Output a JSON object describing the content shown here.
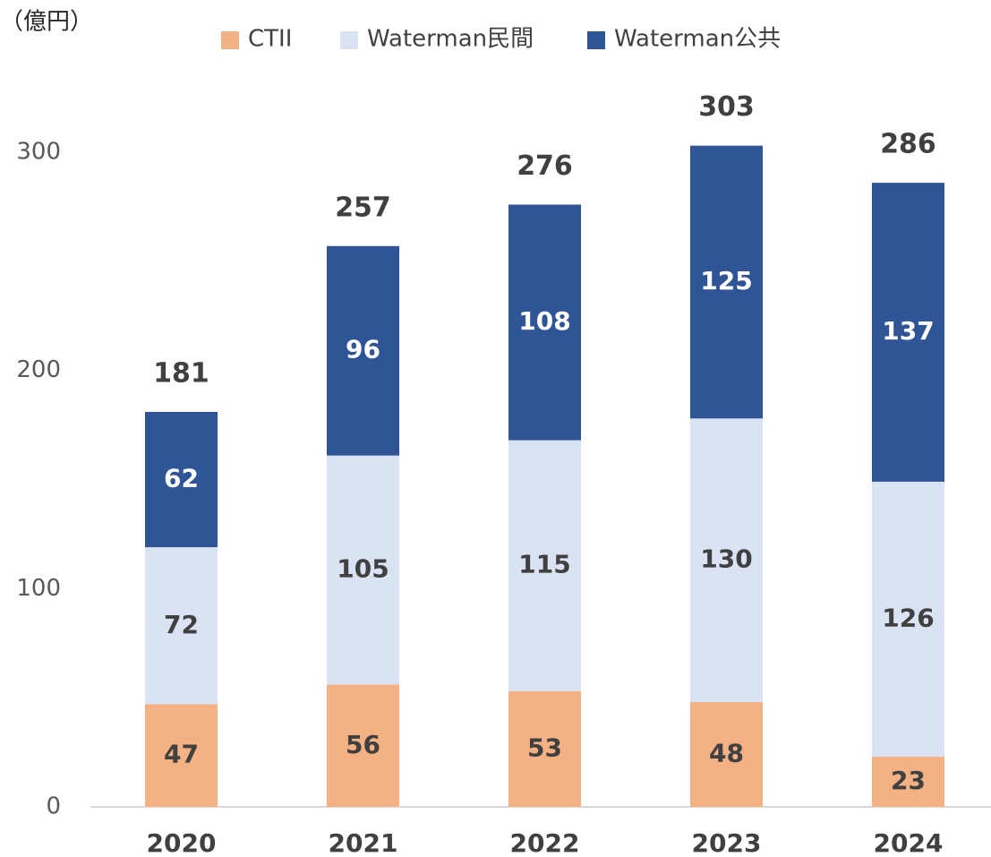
{
  "chart_data": {
    "type": "stacked_bar",
    "unit_label": "（億円）",
    "categories": [
      "2020",
      "2021",
      "2022",
      "2023",
      "2024"
    ],
    "series": [
      {
        "name": "CTII",
        "color": "#f4b183",
        "values": [
          47,
          56,
          53,
          48,
          23
        ]
      },
      {
        "name": "Waterman民間",
        "color": "#dae3f3",
        "values": [
          72,
          105,
          115,
          130,
          126
        ]
      },
      {
        "name": "Waterman公共",
        "color": "#2f5597",
        "values": [
          62,
          96,
          108,
          125,
          137
        ]
      }
    ],
    "totals": [
      181,
      257,
      276,
      303,
      286
    ],
    "ylim": [
      0,
      300
    ],
    "yticks": [
      0,
      100,
      200,
      300
    ],
    "grid": false,
    "legend": "top"
  }
}
